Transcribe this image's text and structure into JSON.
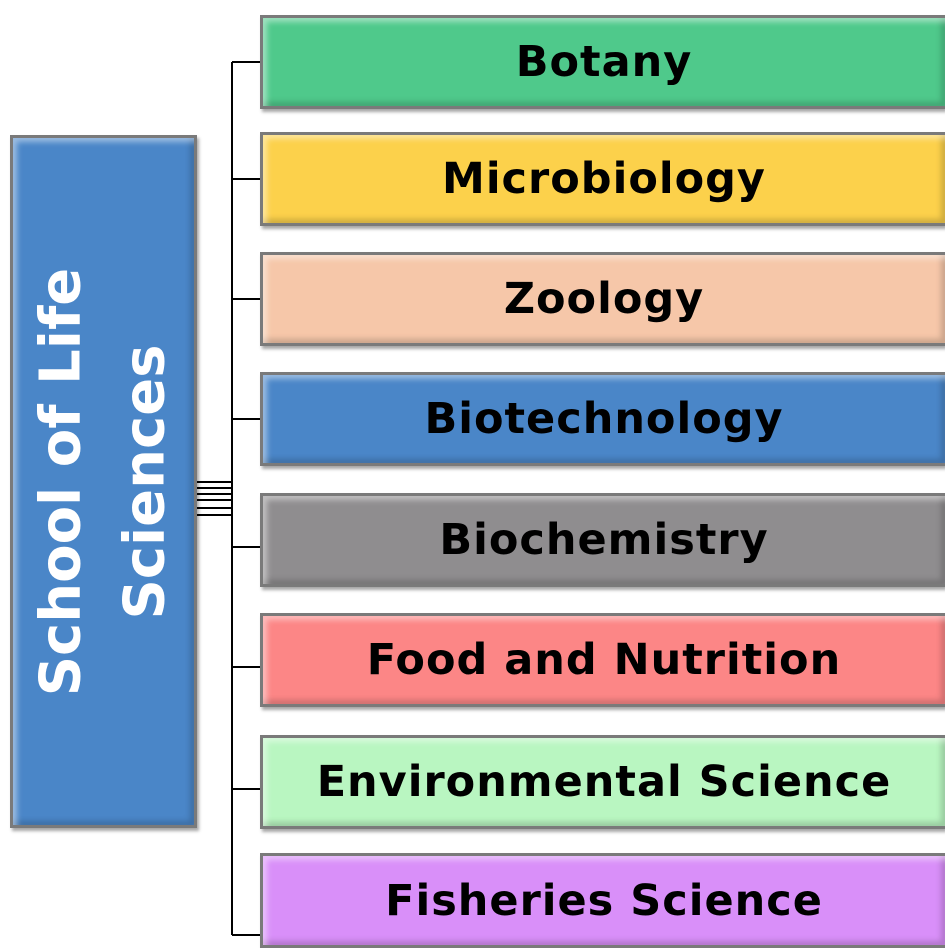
{
  "root": {
    "lines": [
      "School of Life",
      "Sciences"
    ],
    "color": "#4a86c8"
  },
  "nodes": [
    {
      "label": "Botany",
      "color": "#4fc98b"
    },
    {
      "label": "Microbiology",
      "color": "#fcd14b"
    },
    {
      "label": "Zoology",
      "color": "#f6c7a9"
    },
    {
      "label": "Biotechnology",
      "color": "#4a86c8"
    },
    {
      "label": "Biochemistry",
      "color": "#8f8d8f"
    },
    {
      "label": "Food and Nutrition",
      "color": "#fc8686"
    },
    {
      "label": "Environmental Science",
      "color": "#b9f6c1"
    },
    {
      "label": "Fisheries Science",
      "color": "#d98ff9"
    }
  ]
}
